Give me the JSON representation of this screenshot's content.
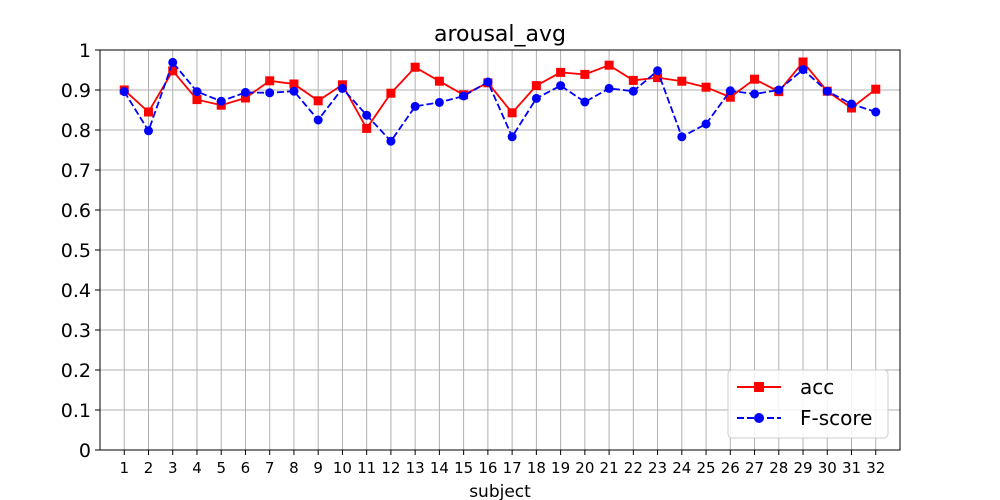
{
  "chart_data": {
    "type": "line",
    "title": "arousal_avg",
    "xlabel": "subject",
    "ylabel": "",
    "x": [
      1,
      2,
      3,
      4,
      5,
      6,
      7,
      8,
      9,
      10,
      11,
      12,
      13,
      14,
      15,
      16,
      17,
      18,
      19,
      20,
      21,
      22,
      23,
      24,
      25,
      26,
      27,
      28,
      29,
      30,
      31,
      32
    ],
    "xlim": [
      0,
      33
    ],
    "ylim": [
      0,
      1
    ],
    "yticks": [
      0,
      0.1,
      0.2,
      0.3,
      0.4,
      0.5,
      0.6,
      0.7,
      0.8,
      0.9,
      1
    ],
    "ytick_labels": [
      "0",
      "0.1",
      "0.2",
      "0.3",
      "0.4",
      "0.5",
      "0.6",
      "0.7",
      "0.8",
      "0.9",
      "1"
    ],
    "grid": true,
    "legend_position": "bottom-right",
    "series": [
      {
        "name": "acc",
        "color": "#ff0000",
        "marker": "square",
        "linestyle": "solid",
        "values": [
          0.9,
          0.845,
          0.948,
          0.876,
          0.862,
          0.88,
          0.923,
          0.915,
          0.873,
          0.913,
          0.804,
          0.892,
          0.957,
          0.922,
          0.888,
          0.918,
          0.843,
          0.911,
          0.944,
          0.939,
          0.962,
          0.924,
          0.931,
          0.922,
          0.907,
          0.882,
          0.927,
          0.896,
          0.97,
          0.897,
          0.855,
          0.902
        ]
      },
      {
        "name": "F-score",
        "color": "#0000ff",
        "marker": "circle",
        "linestyle": "dashed",
        "values": [
          0.896,
          0.798,
          0.969,
          0.896,
          0.872,
          0.894,
          0.893,
          0.897,
          0.825,
          0.904,
          0.837,
          0.772,
          0.859,
          0.869,
          0.885,
          0.92,
          0.783,
          0.879,
          0.911,
          0.87,
          0.904,
          0.897,
          0.948,
          0.783,
          0.815,
          0.898,
          0.89,
          0.9,
          0.951,
          0.897,
          0.865,
          0.845
        ]
      }
    ]
  }
}
